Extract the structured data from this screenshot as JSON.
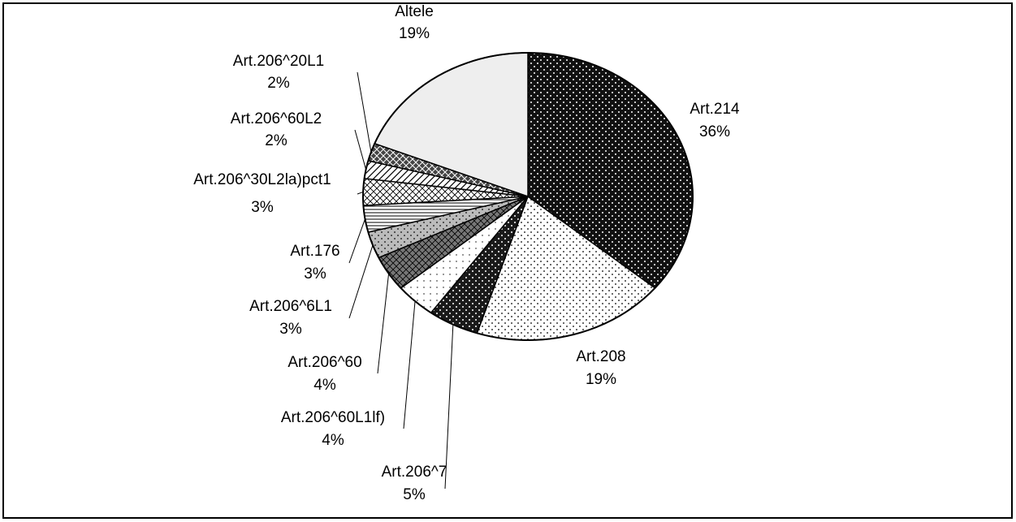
{
  "chart_data": {
    "type": "pie",
    "categories": [
      "Art.214",
      "Art.208",
      "Art.206^7",
      "Art.206^60L1lf)",
      "Art.206^60",
      "Art.206^6L1",
      "Art.176",
      "Art.206^30L2la)pct1",
      "Art.206^60L2",
      "Art.206^20L1",
      "Altele"
    ],
    "values": [
      36,
      19,
      5,
      4,
      4,
      3,
      3,
      3,
      2,
      2,
      19
    ],
    "value_labels": [
      "36%",
      "19%",
      "5%",
      "4%",
      "4%",
      "3%",
      "3%",
      "3%",
      "2%",
      "2%",
      "19%"
    ],
    "colors": [
      "#111111",
      "#ffffff",
      "#1a1a1a",
      "#ffffff",
      "#777777",
      "#bbbbbb",
      "#ffffff",
      "#ffffff",
      "#ffffff",
      "#444444",
      "#eeeeee"
    ]
  }
}
